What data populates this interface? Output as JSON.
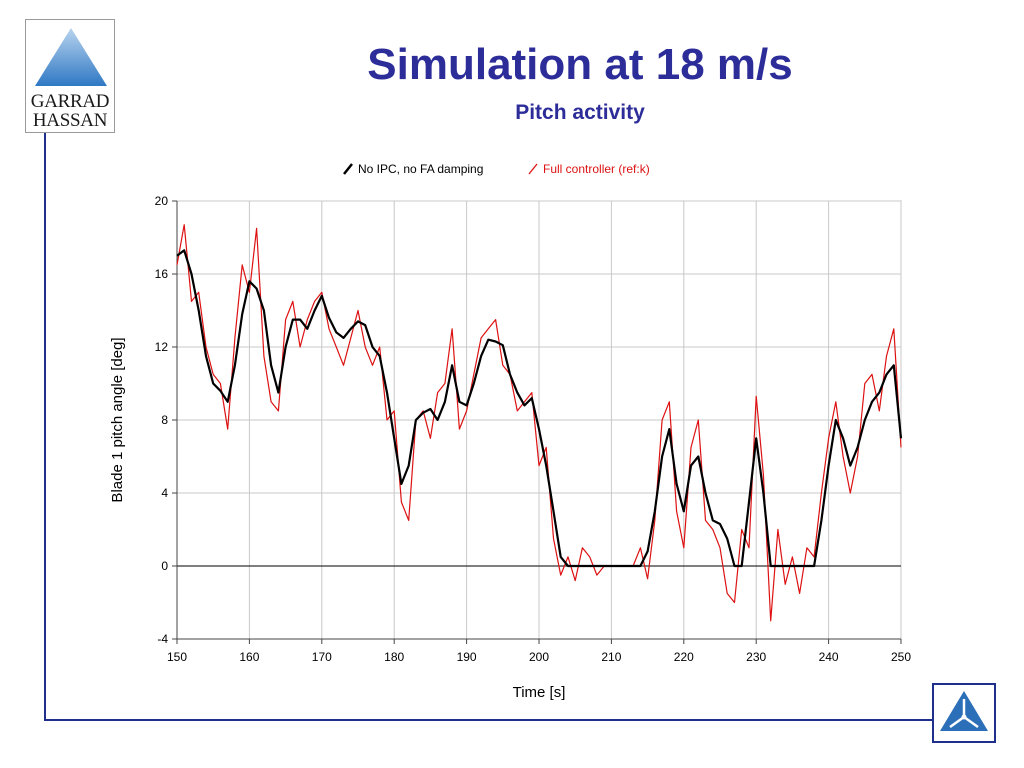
{
  "logo": {
    "line1": "GARRAD",
    "line2": "HASSAN"
  },
  "header": {
    "title": "Simulation at 18 m/s",
    "subtitle": "Pitch activity"
  },
  "colors": {
    "title": "#2d2d9a",
    "frame": "#1f2f8c",
    "series_black": "#000000",
    "series_red": "#dd1111"
  },
  "chart_data": {
    "type": "line",
    "title": "",
    "xlabel": "Time [s]",
    "ylabel": "Blade 1 pitch angle  [deg]",
    "xlim": [
      150,
      250
    ],
    "ylim": [
      -4,
      20
    ],
    "xticks": [
      150,
      160,
      170,
      180,
      190,
      200,
      210,
      220,
      230,
      240,
      250
    ],
    "yticks": [
      -4,
      0,
      4,
      8,
      12,
      16,
      20
    ],
    "grid": true,
    "legend_position": "top-center",
    "series": [
      {
        "name": "No IPC, no FA damping",
        "color": "#000000",
        "x": [
          150,
          151,
          152,
          153,
          154,
          155,
          156,
          157,
          158,
          159,
          160,
          161,
          162,
          163,
          164,
          165,
          166,
          167,
          168,
          169,
          170,
          171,
          172,
          173,
          174,
          175,
          176,
          177,
          178,
          179,
          180,
          181,
          182,
          183,
          184,
          185,
          186,
          187,
          188,
          189,
          190,
          191,
          192,
          193,
          194,
          195,
          196,
          197,
          198,
          199,
          200,
          201,
          202,
          203,
          204,
          205,
          206,
          207,
          208,
          209,
          210,
          211,
          212,
          213,
          214,
          215,
          216,
          217,
          218,
          219,
          220,
          221,
          222,
          223,
          224,
          225,
          226,
          227,
          228,
          229,
          230,
          231,
          232,
          233,
          234,
          235,
          236,
          237,
          238,
          239,
          240,
          241,
          242,
          243,
          244,
          245,
          246,
          247,
          248,
          249,
          250
        ],
        "y": [
          17.0,
          17.3,
          16.0,
          14.0,
          11.5,
          10.0,
          9.6,
          9.0,
          11.0,
          13.8,
          15.6,
          15.2,
          14.0,
          11.0,
          9.5,
          12.0,
          13.5,
          13.5,
          13.0,
          14.0,
          14.8,
          13.6,
          12.8,
          12.5,
          13.0,
          13.4,
          13.2,
          12.0,
          11.5,
          9.5,
          7.0,
          4.5,
          5.5,
          8.0,
          8.4,
          8.6,
          8.0,
          9.0,
          11.0,
          9.0,
          8.8,
          10.0,
          11.5,
          12.4,
          12.3,
          12.1,
          10.5,
          9.5,
          8.8,
          9.2,
          7.5,
          5.5,
          3.0,
          0.5,
          0.0,
          0.0,
          0.0,
          0.0,
          0.0,
          0.0,
          0.0,
          0.0,
          0.0,
          0.0,
          0.0,
          0.8,
          3.0,
          6.0,
          7.5,
          4.5,
          3.0,
          5.5,
          6.0,
          4.0,
          2.5,
          2.3,
          1.5,
          0.0,
          0.0,
          3.5,
          7.0,
          4.0,
          0.0,
          0.0,
          0.0,
          0.0,
          0.0,
          0.0,
          0.0,
          2.5,
          5.5,
          8.0,
          7.0,
          5.5,
          6.5,
          8.0,
          9.0,
          9.5,
          10.5,
          11.0,
          7.0
        ]
      },
      {
        "name": "Full controller (ref:k)",
        "color": "#dd1111",
        "x": [
          150,
          151,
          152,
          153,
          154,
          155,
          156,
          157,
          158,
          159,
          160,
          161,
          162,
          163,
          164,
          165,
          166,
          167,
          168,
          169,
          170,
          171,
          172,
          173,
          174,
          175,
          176,
          177,
          178,
          179,
          180,
          181,
          182,
          183,
          184,
          185,
          186,
          187,
          188,
          189,
          190,
          191,
          192,
          193,
          194,
          195,
          196,
          197,
          198,
          199,
          200,
          201,
          202,
          203,
          204,
          205,
          206,
          207,
          208,
          209,
          210,
          211,
          212,
          213,
          214,
          215,
          216,
          217,
          218,
          219,
          220,
          221,
          222,
          223,
          224,
          225,
          226,
          227,
          228,
          229,
          230,
          231,
          232,
          233,
          234,
          235,
          236,
          237,
          238,
          239,
          240,
          241,
          242,
          243,
          244,
          245,
          246,
          247,
          248,
          249,
          250
        ],
        "y": [
          16.5,
          18.7,
          14.5,
          15.0,
          12.0,
          10.5,
          10.0,
          7.5,
          12.5,
          16.5,
          15.0,
          18.5,
          11.5,
          9.0,
          8.5,
          13.5,
          14.5,
          12.0,
          13.5,
          14.5,
          15.0,
          13.0,
          12.0,
          11.0,
          12.5,
          14.0,
          12.0,
          11.0,
          12.0,
          8.0,
          8.5,
          3.5,
          2.5,
          8.0,
          8.5,
          7.0,
          9.5,
          10.0,
          13.0,
          7.5,
          8.5,
          10.5,
          12.5,
          13.0,
          13.5,
          11.0,
          10.5,
          8.5,
          9.0,
          9.5,
          5.5,
          6.5,
          1.5,
          -0.5,
          0.5,
          -0.8,
          1.0,
          0.5,
          -0.5,
          0.0,
          0.0,
          0.0,
          0.0,
          0.0,
          1.0,
          -0.7,
          2.5,
          8.0,
          9.0,
          3.0,
          1.0,
          6.5,
          8.0,
          2.5,
          2.0,
          1.0,
          -1.5,
          -2.0,
          2.0,
          1.0,
          9.3,
          5.0,
          -3.0,
          2.0,
          -1.0,
          0.5,
          -1.5,
          1.0,
          0.5,
          4.0,
          7.0,
          9.0,
          6.0,
          4.0,
          6.0,
          10.0,
          10.5,
          8.5,
          11.5,
          13.0,
          6.5
        ]
      }
    ]
  }
}
